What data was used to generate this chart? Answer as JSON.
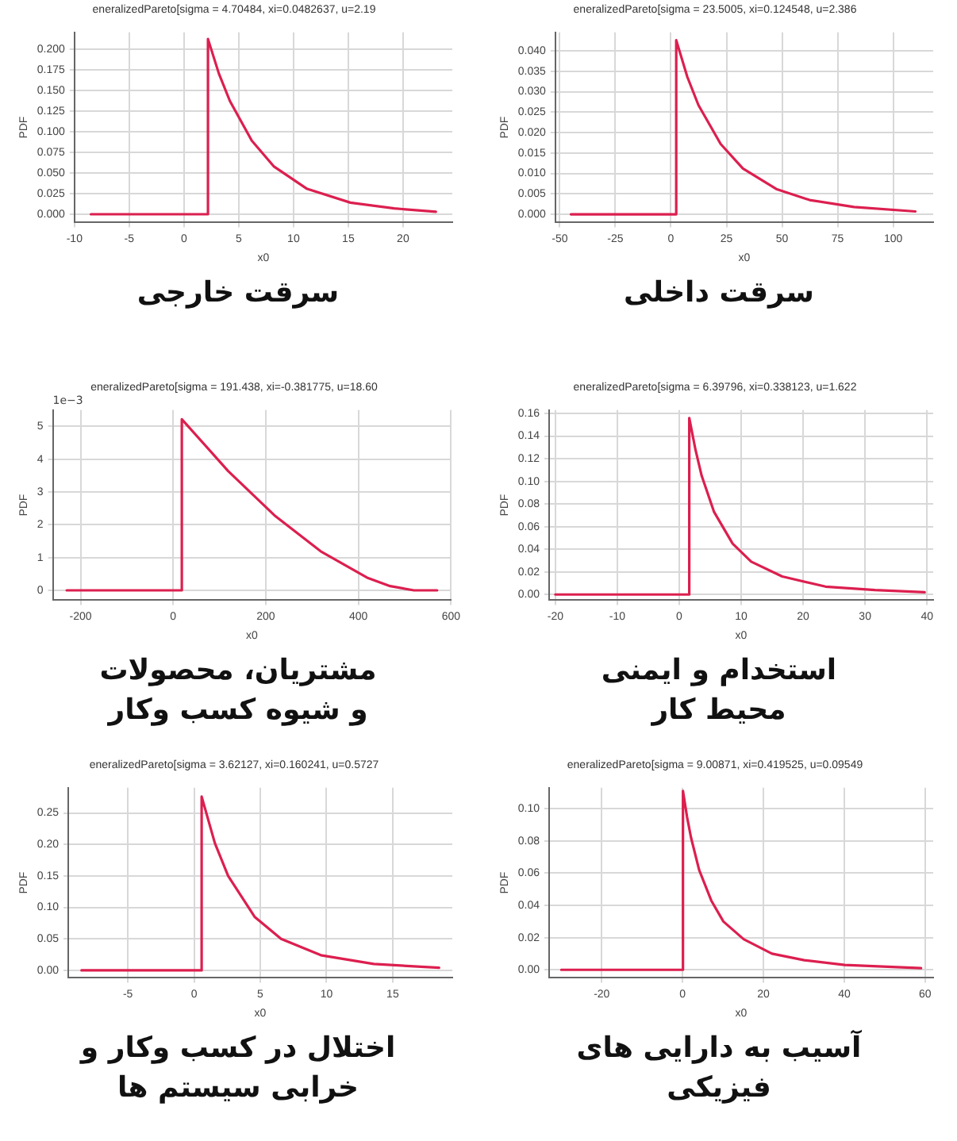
{
  "chart_data": [
    {
      "type": "line",
      "title": "eneralizedPareto[sigma = 4.70484, xi=0.0482637, u=2.19",
      "subtitle": "سرقت خارجی",
      "xlabel": "x0",
      "ylabel": "PDF",
      "grid": true,
      "x": [
        -8.5,
        2.19,
        2.19,
        3.19,
        4.19,
        6.19,
        8.19,
        11.19,
        15.19,
        19.19,
        23
      ],
      "series": [
        {
          "color": "#dc1f4f",
          "values": [
            0,
            0,
            0.212,
            0.17,
            0.137,
            0.089,
            0.058,
            0.031,
            0.014,
            0.007,
            0.003
          ]
        }
      ],
      "xlim": [
        -10,
        24.5
      ],
      "xticks": [
        -10,
        -5,
        0,
        5,
        10,
        15,
        20
      ],
      "ylim": [
        -0.01,
        0.22
      ],
      "yticks": [
        {
          "value": 0,
          "label": "0.000"
        },
        {
          "value": 0.025,
          "label": "0.025"
        },
        {
          "value": 0.05,
          "label": "0.050"
        },
        {
          "value": 0.075,
          "label": "0.075"
        },
        {
          "value": 0.1,
          "label": "0.100"
        },
        {
          "value": 0.125,
          "label": "0.125"
        },
        {
          "value": 0.15,
          "label": "0.150"
        },
        {
          "value": 0.175,
          "label": "0.175"
        },
        {
          "value": 0.2,
          "label": "0.200"
        }
      ]
    },
    {
      "type": "line",
      "title": "eneralizedPareto[sigma = 23.5005, xi=0.124548, u=2.386",
      "subtitle": "سرقت داخلی",
      "xlabel": "x0",
      "ylabel": "PDF",
      "grid": true,
      "x": [
        -45,
        2.39,
        2.39,
        7.39,
        12.39,
        22.39,
        32.39,
        47.39,
        62.39,
        82.39,
        110
      ],
      "series": [
        {
          "color": "#dc1f4f",
          "values": [
            0,
            0,
            0.0426,
            0.0336,
            0.0267,
            0.0172,
            0.0112,
            0.0062,
            0.0035,
            0.0018,
            0.0007
          ]
        }
      ],
      "xlim": [
        -52,
        118
      ],
      "xticks": [
        -50,
        -25,
        0,
        25,
        50,
        75,
        100
      ],
      "ylim": [
        -0.002,
        0.0445
      ],
      "yticks": [
        {
          "value": 0,
          "label": "0.000"
        },
        {
          "value": 0.005,
          "label": "0.005"
        },
        {
          "value": 0.01,
          "label": "0.010"
        },
        {
          "value": 0.015,
          "label": "0.015"
        },
        {
          "value": 0.02,
          "label": "0.020"
        },
        {
          "value": 0.025,
          "label": "0.025"
        },
        {
          "value": 0.03,
          "label": "0.030"
        },
        {
          "value": 0.035,
          "label": "0.035"
        },
        {
          "value": 0.04,
          "label": "0.040"
        }
      ]
    },
    {
      "type": "line",
      "title": "eneralizedPareto[sigma = 191.438, xi=-0.381775, u=18.60",
      "subtitle": "مشتریان، محصولات\nو شیوه کسب وکار",
      "xlabel": "x0",
      "ylabel": "PDF",
      "grid": true,
      "annotations": [
        "1e−3"
      ],
      "x": [
        -230,
        18.6,
        18.6,
        118.6,
        218.6,
        318.6,
        418.6,
        468.6,
        520,
        570
      ],
      "series": [
        {
          "color": "#dc1f4f",
          "values": [
            0,
            0,
            5.22,
            3.64,
            2.29,
            1.19,
            0.39,
            0.13,
            0,
            0
          ]
        }
      ],
      "xlim": [
        -260,
        600
      ],
      "xticks": [
        -200,
        0,
        200,
        400,
        600
      ],
      "ylim": [
        -0.3,
        5.5
      ],
      "yticks": [
        0,
        1,
        2,
        3,
        4,
        5
      ]
    },
    {
      "type": "line",
      "title": "eneralizedPareto[sigma = 6.39796, xi=0.338123, u=1.622",
      "subtitle": "استخدام و ایمنی\nمحیط کار",
      "xlabel": "x0",
      "ylabel": "PDF",
      "grid": true,
      "x": [
        -20,
        1.62,
        1.62,
        2.62,
        3.62,
        5.62,
        8.62,
        11.62,
        16.62,
        23.62,
        31.62,
        39.62
      ],
      "series": [
        {
          "color": "#dc1f4f",
          "values": [
            0,
            0,
            0.156,
            0.128,
            0.105,
            0.073,
            0.045,
            0.029,
            0.016,
            0.007,
            0.004,
            0.002
          ]
        }
      ],
      "xlim": [
        -21,
        41
      ],
      "xticks": [
        -20,
        -10,
        0,
        10,
        20,
        30,
        40
      ],
      "ylim": [
        -0.005,
        0.163
      ],
      "yticks": [
        {
          "value": 0,
          "label": "0.00"
        },
        {
          "value": 0.02,
          "label": "0.02"
        },
        {
          "value": 0.04,
          "label": "0.04"
        },
        {
          "value": 0.06,
          "label": "0.06"
        },
        {
          "value": 0.08,
          "label": "0.08"
        },
        {
          "value": 0.1,
          "label": "0.10"
        },
        {
          "value": 0.12,
          "label": "0.12"
        },
        {
          "value": 0.14,
          "label": "0.14"
        },
        {
          "value": 0.16,
          "label": "0.16"
        }
      ]
    },
    {
      "type": "line",
      "title": "eneralizedPareto[sigma = 3.62127, xi=0.160241, u=0.5727",
      "subtitle": "اختلال در کسب وکار و\nخرابی سیستم ها",
      "xlabel": "x0",
      "ylabel": "PDF",
      "grid": true,
      "x": [
        -8.5,
        0.57,
        0.57,
        1.57,
        2.57,
        4.57,
        6.57,
        9.57,
        13.57,
        18.5
      ],
      "series": [
        {
          "color": "#dc1f4f",
          "values": [
            0,
            0,
            0.276,
            0.202,
            0.15,
            0.085,
            0.05,
            0.024,
            0.01,
            0.004
          ]
        }
      ],
      "xlim": [
        -9.5,
        19.5
      ],
      "xticks": [
        -5,
        0,
        5,
        10,
        15
      ],
      "ylim": [
        -0.012,
        0.29
      ],
      "yticks": [
        {
          "value": 0,
          "label": "0.00"
        },
        {
          "value": 0.05,
          "label": "0.05"
        },
        {
          "value": 0.1,
          "label": "0.10"
        },
        {
          "value": 0.15,
          "label": "0.15"
        },
        {
          "value": 0.2,
          "label": "0.20"
        },
        {
          "value": 0.25,
          "label": "0.25"
        }
      ]
    },
    {
      "type": "line",
      "title": "eneralizedPareto[sigma = 9.00871, xi=0.419525, u=0.09549",
      "subtitle": "آسیب به دارایی های\nفیزیکی",
      "xlabel": "x0",
      "ylabel": "PDF",
      "grid": true,
      "x": [
        -30,
        0.1,
        0.1,
        1.1,
        2.1,
        4.1,
        7.1,
        10.1,
        15.1,
        22.1,
        30.1,
        40.1,
        59
      ],
      "series": [
        {
          "color": "#dc1f4f",
          "values": [
            0,
            0,
            0.111,
            0.095,
            0.082,
            0.062,
            0.043,
            0.03,
            0.019,
            0.01,
            0.006,
            0.003,
            0.001
          ]
        }
      ],
      "xlim": [
        -33,
        62
      ],
      "xticks": [
        -20,
        0,
        20,
        40,
        60
      ],
      "ylim": [
        -0.005,
        0.113
      ],
      "yticks": [
        {
          "value": 0,
          "label": "0.00"
        },
        {
          "value": 0.02,
          "label": "0.02"
        },
        {
          "value": 0.04,
          "label": "0.04"
        },
        {
          "value": 0.06,
          "label": "0.06"
        },
        {
          "value": 0.08,
          "label": "0.08"
        },
        {
          "value": 0.1,
          "label": "0.10"
        }
      ]
    }
  ]
}
